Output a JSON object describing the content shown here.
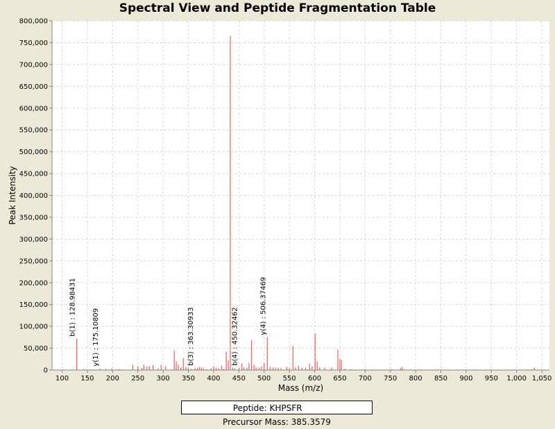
{
  "chart_data": {
    "type": "bar",
    "title": "Spectral View and Peptide Fragmentation Table",
    "xlabel": "Mass (m/z)",
    "ylabel": "Peak Intensity",
    "xlim": [
      80,
      1065
    ],
    "ylim": [
      0,
      800000
    ],
    "xticks": [
      100,
      150,
      200,
      250,
      300,
      350,
      400,
      450,
      500,
      550,
      600,
      650,
      700,
      750,
      800,
      850,
      900,
      950,
      1000,
      1050
    ],
    "xtick_labels": [
      "100",
      "150",
      "200",
      "250",
      "300",
      "350",
      "400",
      "450",
      "500",
      "550",
      "600",
      "650",
      "700",
      "750",
      "800",
      "850",
      "900",
      "950",
      "1,000",
      "1,050"
    ],
    "yticks": [
      0,
      50000,
      100000,
      150000,
      200000,
      250000,
      300000,
      350000,
      400000,
      450000,
      500000,
      550000,
      600000,
      650000,
      700000,
      750000,
      800000
    ],
    "ytick_labels": [
      "0",
      "50,000",
      "100,000",
      "150,000",
      "200,000",
      "250,000",
      "300,000",
      "350,000",
      "400,000",
      "450,000",
      "500,000",
      "550,000",
      "600,000",
      "650,000",
      "700,000",
      "750,000",
      "800,000"
    ],
    "grid": true,
    "bar_color": "#ff5a5a",
    "peaks": [
      [
        129.0,
        72000
      ],
      [
        143,
        2000
      ],
      [
        157,
        1500
      ],
      [
        175.1,
        3500
      ],
      [
        187,
        2500
      ],
      [
        198,
        3000
      ],
      [
        213,
        2000
      ],
      [
        240,
        12000
      ],
      [
        250,
        9000
      ],
      [
        258,
        5000
      ],
      [
        262,
        12000
      ],
      [
        268,
        8000
      ],
      [
        273,
        9000
      ],
      [
        280,
        11000
      ],
      [
        290,
        4000
      ],
      [
        296,
        12000
      ],
      [
        305,
        9000
      ],
      [
        322,
        45000
      ],
      [
        326,
        20000
      ],
      [
        330,
        12000
      ],
      [
        335,
        6000
      ],
      [
        340,
        27000
      ],
      [
        345,
        7000
      ],
      [
        350,
        5000
      ],
      [
        356,
        3000
      ],
      [
        363.3,
        5000
      ],
      [
        368,
        4000
      ],
      [
        372,
        7000
      ],
      [
        376,
        6000
      ],
      [
        380,
        3000
      ],
      [
        386,
        2000
      ],
      [
        395,
        4000
      ],
      [
        400,
        9000
      ],
      [
        405,
        5000
      ],
      [
        410,
        4000
      ],
      [
        416,
        10000
      ],
      [
        420,
        3000
      ],
      [
        425,
        42000
      ],
      [
        429,
        22000
      ],
      [
        433,
        765000
      ],
      [
        438,
        6000
      ],
      [
        442,
        4000
      ],
      [
        450.3,
        5000
      ],
      [
        456,
        15000
      ],
      [
        460,
        6000
      ],
      [
        466,
        5000
      ],
      [
        470,
        16000
      ],
      [
        475,
        68000
      ],
      [
        480,
        12000
      ],
      [
        484,
        6000
      ],
      [
        490,
        5000
      ],
      [
        495,
        8000
      ],
      [
        500,
        16000
      ],
      [
        506.4,
        75000
      ],
      [
        512,
        7000
      ],
      [
        518,
        6000
      ],
      [
        523,
        5000
      ],
      [
        528,
        5000
      ],
      [
        533,
        4000
      ],
      [
        545,
        7000
      ],
      [
        550,
        5000
      ],
      [
        557,
        55000
      ],
      [
        562,
        6000
      ],
      [
        568,
        10000
      ],
      [
        575,
        5000
      ],
      [
        582,
        5000
      ],
      [
        590,
        14000
      ],
      [
        595,
        8000
      ],
      [
        601,
        83000
      ],
      [
        605,
        20000
      ],
      [
        610,
        6000
      ],
      [
        620,
        5000
      ],
      [
        634,
        6000
      ],
      [
        646,
        47000
      ],
      [
        650,
        25000
      ],
      [
        653,
        23000
      ],
      [
        660,
        3000
      ],
      [
        672,
        2000
      ],
      [
        700,
        1500
      ],
      [
        720,
        1000
      ],
      [
        752,
        2000
      ],
      [
        770,
        4000
      ],
      [
        773,
        7000
      ],
      [
        777,
        2000
      ],
      [
        808,
        1500
      ],
      [
        842,
        1500
      ],
      [
        912,
        1000
      ],
      [
        1025,
        1500
      ],
      [
        1035,
        5000
      ]
    ],
    "annotations": [
      {
        "label": "b(1) : 128.98431",
        "x": 128.98431,
        "y": 72000
      },
      {
        "label": "y(1) : 175.10809",
        "x": 175.10809,
        "y": 3500
      },
      {
        "label": "b(3) : 363.30933",
        "x": 363.30933,
        "y": 5000
      },
      {
        "label": "b(4) : 450.32462",
        "x": 450.32462,
        "y": 5000
      },
      {
        "label": "y(4) : 506.37469",
        "x": 506.37469,
        "y": 75000
      }
    ]
  },
  "info": {
    "peptide_label": "Peptide: KHPSFR",
    "precursor_label": "Precursor Mass: 385.3579"
  }
}
